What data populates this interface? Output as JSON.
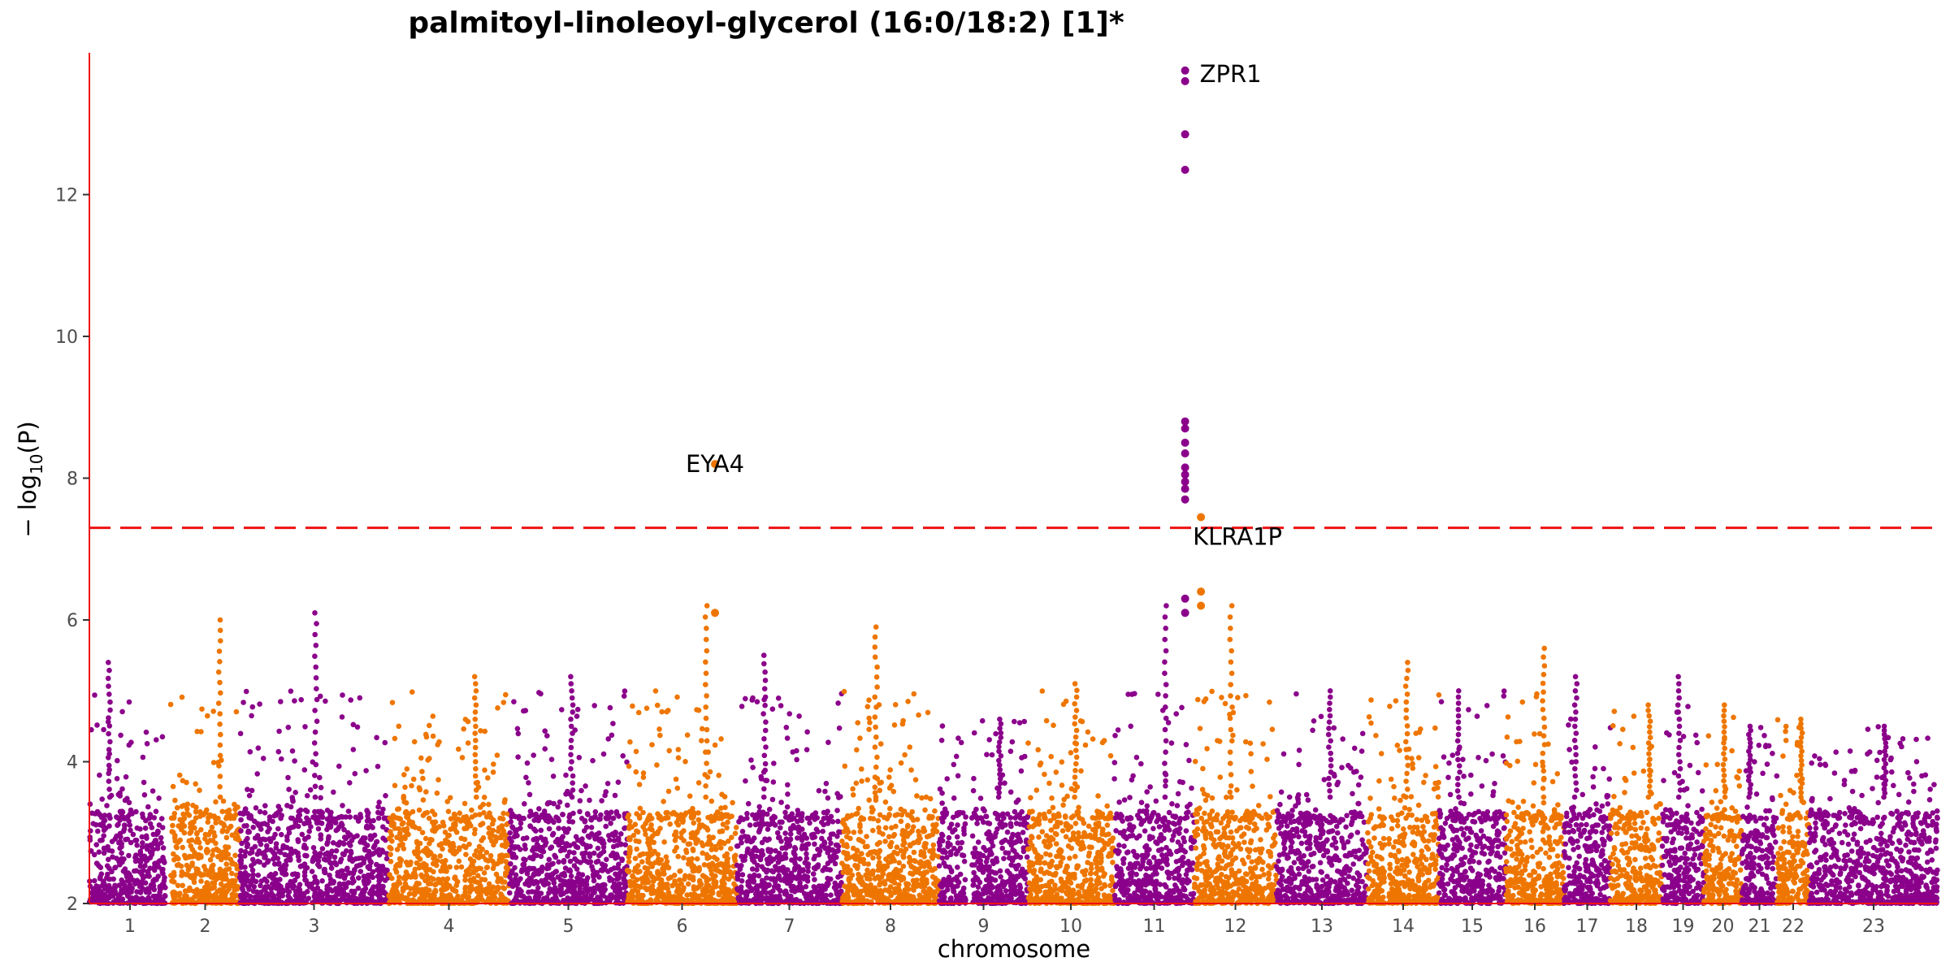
{
  "chart_data": {
    "type": "scatter",
    "title": "palmitoyl-linoleoyl-glycerol (16:0/18:2) [1]*",
    "xlabel": "chromosome",
    "ylabel_parts": {
      "prefix": "− log",
      "subscript": "10",
      "suffix": "(P)"
    },
    "ylim": [
      2,
      14
    ],
    "y_ticks": [
      2,
      4,
      6,
      8,
      10,
      12
    ],
    "y_tick_labels": [
      "2",
      "4",
      "6",
      "8",
      "10",
      "12"
    ],
    "significance_threshold": 7.3,
    "grid": false,
    "colors": {
      "odd_chromosome": "#8b008b",
      "even_chromosome": "#ee7600",
      "threshold_line": "#ee1111",
      "axis": "#ee1111"
    },
    "chromosomes": [
      {
        "label": "1",
        "color": "odd",
        "peak": 5.4
      },
      {
        "label": "2",
        "color": "even",
        "peak": 6.0
      },
      {
        "label": "3",
        "color": "odd",
        "peak": 6.1
      },
      {
        "label": "4",
        "color": "even",
        "peak": 5.2
      },
      {
        "label": "5",
        "color": "odd",
        "peak": 5.2
      },
      {
        "label": "6",
        "color": "even",
        "peak": 8.2
      },
      {
        "label": "7",
        "color": "odd",
        "peak": 5.5
      },
      {
        "label": "8",
        "color": "even",
        "peak": 5.9
      },
      {
        "label": "9",
        "color": "odd",
        "peak": 4.6
      },
      {
        "label": "10",
        "color": "even",
        "peak": 5.1
      },
      {
        "label": "11",
        "color": "odd",
        "peak": 13.8
      },
      {
        "label": "12",
        "color": "even",
        "peak": 7.5
      },
      {
        "label": "13",
        "color": "odd",
        "peak": 5.0
      },
      {
        "label": "14",
        "color": "even",
        "peak": 5.4
      },
      {
        "label": "15",
        "color": "odd",
        "peak": 5.0
      },
      {
        "label": "16",
        "color": "even",
        "peak": 5.6
      },
      {
        "label": "17",
        "color": "odd",
        "peak": 5.2
      },
      {
        "label": "18",
        "color": "even",
        "peak": 4.8
      },
      {
        "label": "19",
        "color": "odd",
        "peak": 5.2
      },
      {
        "label": "20",
        "color": "even",
        "peak": 4.8
      },
      {
        "label": "21",
        "color": "odd",
        "peak": 4.5
      },
      {
        "label": "22",
        "color": "even",
        "peak": 4.6
      },
      {
        "label": "23",
        "color": "odd",
        "peak": 4.5
      }
    ],
    "highlighted_points": [
      {
        "chr": "11",
        "x": 0.885,
        "y": 13.75
      },
      {
        "chr": "11",
        "x": 0.885,
        "y": 13.6
      },
      {
        "chr": "11",
        "x": 0.885,
        "y": 12.85
      },
      {
        "chr": "11",
        "x": 0.885,
        "y": 12.35
      },
      {
        "chr": "11",
        "x": 0.885,
        "y": 8.8
      },
      {
        "chr": "11",
        "x": 0.885,
        "y": 8.7
      },
      {
        "chr": "11",
        "x": 0.885,
        "y": 8.5
      },
      {
        "chr": "11",
        "x": 0.885,
        "y": 8.35
      },
      {
        "chr": "11",
        "x": 0.885,
        "y": 8.15
      },
      {
        "chr": "11",
        "x": 0.885,
        "y": 8.05
      },
      {
        "chr": "11",
        "x": 0.885,
        "y": 7.95
      },
      {
        "chr": "11",
        "x": 0.885,
        "y": 7.85
      },
      {
        "chr": "11",
        "x": 0.885,
        "y": 7.7
      },
      {
        "chr": "11",
        "x": 0.885,
        "y": 6.3
      },
      {
        "chr": "11",
        "x": 0.885,
        "y": 6.1
      },
      {
        "chr": "12",
        "x": 0.08,
        "y": 7.45
      },
      {
        "chr": "12",
        "x": 0.08,
        "y": 6.4
      },
      {
        "chr": "12",
        "x": 0.08,
        "y": 6.2
      },
      {
        "chr": "6",
        "x": 0.8,
        "y": 8.2
      },
      {
        "chr": "6",
        "x": 0.8,
        "y": 6.1
      }
    ],
    "annotations": [
      {
        "label": "ZPR1",
        "chr": "11",
        "y": 13.7
      },
      {
        "label": "EYA4",
        "chr": "6",
        "y": 8.2
      },
      {
        "label": "KLRA1P",
        "chr": "12",
        "y": 7.45
      }
    ]
  }
}
